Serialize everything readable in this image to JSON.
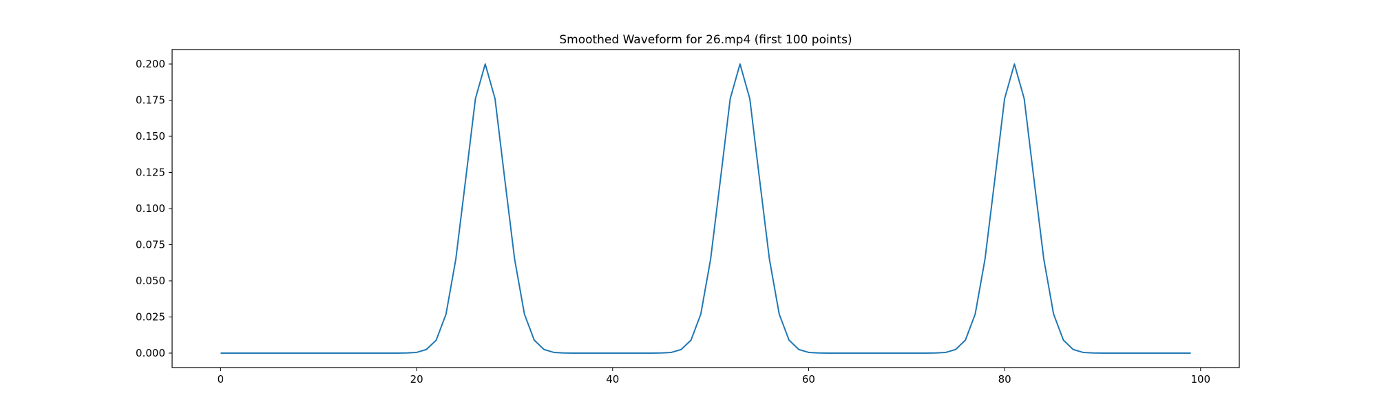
{
  "chart_data": {
    "type": "line",
    "title": "Smoothed Waveform for 26.mp4 (first 100 points)",
    "xlabel": "",
    "ylabel": "",
    "xlim": [
      -4.95,
      103.95
    ],
    "ylim": [
      -0.01,
      0.21
    ],
    "x_ticks": [
      0,
      20,
      40,
      60,
      80,
      100
    ],
    "x_tick_labels": [
      "0",
      "20",
      "40",
      "60",
      "80",
      "100"
    ],
    "y_ticks": [
      0,
      0.025,
      0.05,
      0.075,
      0.1,
      0.125,
      0.15,
      0.175,
      0.2
    ],
    "y_tick_labels": [
      "0.000",
      "0.025",
      "0.050",
      "0.075",
      "0.100",
      "0.125",
      "0.150",
      "0.175",
      "0.200"
    ],
    "grid": false,
    "series": [
      {
        "color": "#1f77b4",
        "x": [
          0,
          1,
          2,
          3,
          4,
          5,
          6,
          7,
          8,
          9,
          10,
          11,
          12,
          13,
          14,
          15,
          16,
          17,
          18,
          19,
          20,
          21,
          22,
          23,
          24,
          25,
          26,
          27,
          28,
          29,
          30,
          31,
          32,
          33,
          34,
          35,
          36,
          37,
          38,
          39,
          40,
          41,
          42,
          43,
          44,
          45,
          46,
          47,
          48,
          49,
          50,
          51,
          52,
          53,
          54,
          55,
          56,
          57,
          58,
          59,
          60,
          61,
          62,
          63,
          64,
          65,
          66,
          67,
          68,
          69,
          70,
          71,
          72,
          73,
          74,
          75,
          76,
          77,
          78,
          79,
          80,
          81,
          82,
          83,
          84,
          85,
          86,
          87,
          88,
          89,
          90,
          91,
          92,
          93,
          94,
          95,
          96,
          97,
          98,
          99
        ],
        "values": [
          0,
          0,
          0,
          0,
          0,
          0,
          0,
          0,
          0,
          0,
          0,
          0,
          0,
          0,
          0,
          0,
          0,
          0,
          0,
          0.0001,
          0.0005,
          0.0025,
          0.009,
          0.027,
          0.065,
          0.12,
          0.176,
          0.2,
          0.176,
          0.12,
          0.065,
          0.027,
          0.009,
          0.0025,
          0.0005,
          0.0001,
          0,
          0,
          0,
          0,
          0,
          0,
          0,
          0,
          0,
          0.0001,
          0.0005,
          0.0025,
          0.009,
          0.027,
          0.065,
          0.12,
          0.176,
          0.2,
          0.176,
          0.12,
          0.065,
          0.027,
          0.009,
          0.0025,
          0.0005,
          0.0001,
          0,
          0,
          0,
          0,
          0,
          0,
          0,
          0,
          0,
          0,
          0,
          0.0001,
          0.0005,
          0.0025,
          0.009,
          0.027,
          0.065,
          0.12,
          0.176,
          0.2,
          0.176,
          0.12,
          0.065,
          0.027,
          0.009,
          0.0025,
          0.0005,
          0.0001,
          0,
          0,
          0,
          0,
          0,
          0,
          0,
          0,
          0,
          0
        ]
      }
    ]
  }
}
